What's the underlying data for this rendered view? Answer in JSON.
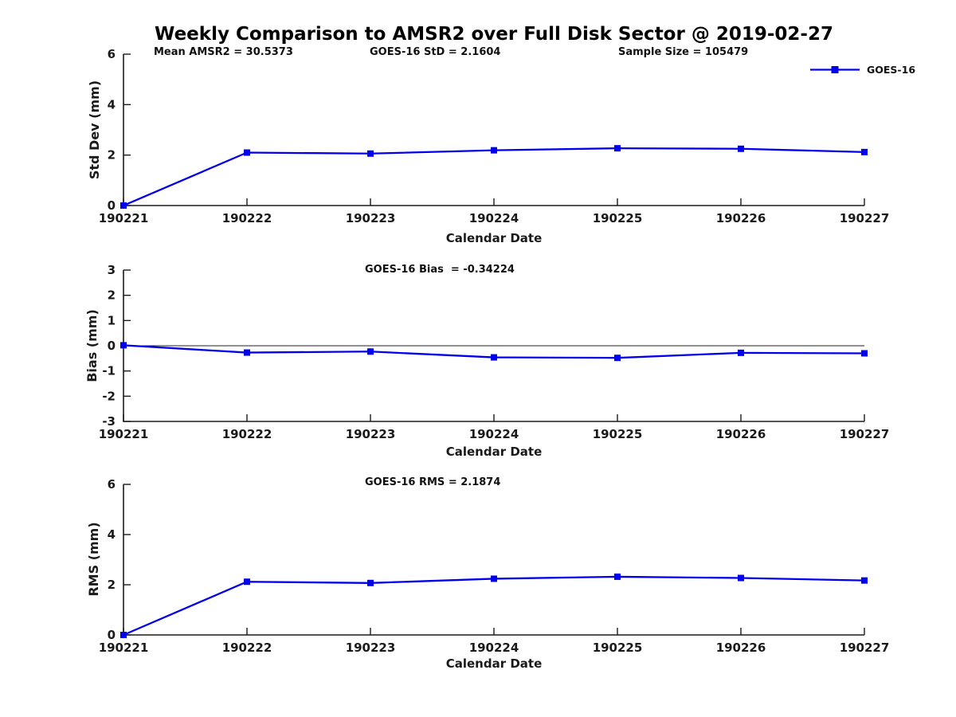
{
  "title": "Weekly Comparison to AMSR2 over Full Disk Sector @ 2019-02-27",
  "legend": {
    "label": "GOES-16"
  },
  "colors": {
    "series": "#0000EE",
    "axis": "#1a1a1a",
    "text": "#1a1a1a",
    "background": "#ffffff"
  },
  "chart_data": [
    {
      "type": "line",
      "id": "std-dev",
      "annotations": [
        "Mean AMSR2 = 30.5373",
        "GOES-16 StD = 2.1604",
        "Sample Size = 105479"
      ],
      "categories": [
        "190221",
        "190222",
        "190223",
        "190224",
        "190225",
        "190226",
        "190227"
      ],
      "series": [
        {
          "name": "GOES-16",
          "marker": "square",
          "values": [
            0,
            2.1,
            2.06,
            2.19,
            2.27,
            2.25,
            2.12
          ]
        }
      ],
      "xlabel": "Calendar Date",
      "ylabel": "Std Dev (mm)",
      "ylim": [
        0,
        6
      ],
      "yticks": [
        0,
        2,
        4,
        6
      ],
      "grid": false,
      "zero_line": false,
      "legend_position": "top-right"
    },
    {
      "type": "line",
      "id": "bias",
      "annotations": [
        "GOES-16 Bias  = -0.34224"
      ],
      "categories": [
        "190221",
        "190222",
        "190223",
        "190224",
        "190225",
        "190226",
        "190227"
      ],
      "series": [
        {
          "name": "GOES-16",
          "marker": "square",
          "values": [
            0.02,
            -0.27,
            -0.23,
            -0.46,
            -0.48,
            -0.28,
            -0.3
          ]
        }
      ],
      "xlabel": "Calendar Date",
      "ylabel": "Bias (mm)",
      "ylim": [
        -3,
        3
      ],
      "yticks": [
        -3,
        -2,
        -1,
        0,
        1,
        2,
        3
      ],
      "grid": false,
      "zero_line": true,
      "legend_position": "none"
    },
    {
      "type": "line",
      "id": "rms",
      "annotations": [
        "GOES-16 RMS = 2.1874"
      ],
      "categories": [
        "190221",
        "190222",
        "190223",
        "190224",
        "190225",
        "190226",
        "190227"
      ],
      "series": [
        {
          "name": "GOES-16",
          "marker": "square",
          "values": [
            0,
            2.12,
            2.07,
            2.24,
            2.32,
            2.27,
            2.17
          ]
        }
      ],
      "xlabel": "Calendar Date",
      "ylabel": "RMS (mm)",
      "ylim": [
        0,
        6
      ],
      "yticks": [
        0,
        2,
        4,
        6
      ],
      "grid": false,
      "zero_line": false,
      "legend_position": "none"
    }
  ]
}
